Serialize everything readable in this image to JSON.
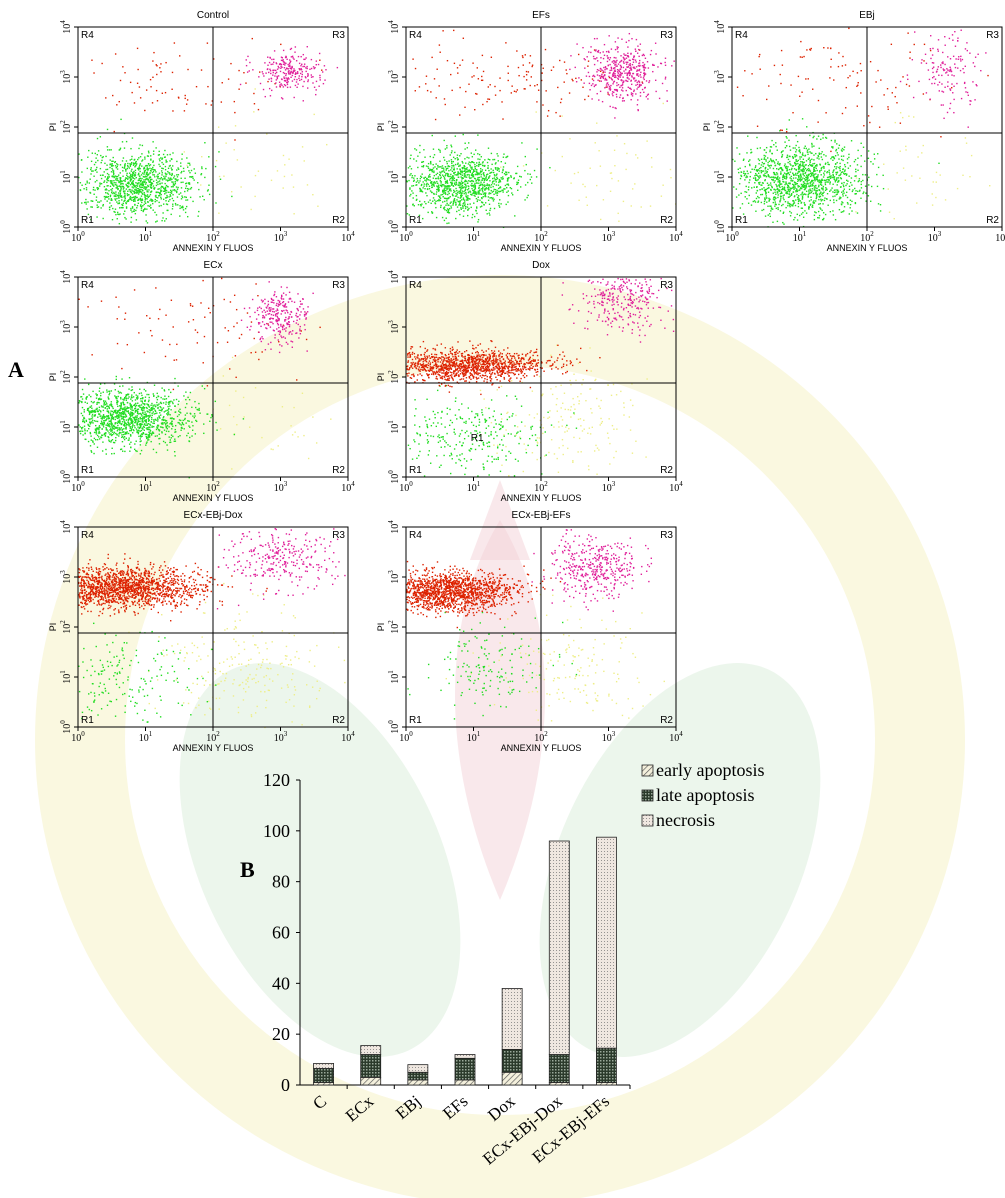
{
  "figure": {
    "label_a": "A",
    "label_b": "B"
  },
  "panels": [
    {
      "title": "Control",
      "xlabel": "ANNEXIN Y FLUOS",
      "ylabel": "PI"
    },
    {
      "title": "EFs",
      "xlabel": "ANNEXIN Y FLUOS",
      "ylabel": "PI"
    },
    {
      "title": "EBj",
      "xlabel": "ANNEXIN Y FLUOS",
      "ylabel": "PI"
    },
    {
      "title": "ECx",
      "xlabel": "ANNEXIN Y FLUOS",
      "ylabel": "PI"
    },
    {
      "title": "Dox",
      "xlabel": "ANNEXIN Y FLUOS",
      "ylabel": "PI",
      "extra_label": "R1"
    },
    {
      "title": "ECx-EBj-Dox",
      "xlabel": "ANNEXIN Y FLUOS",
      "ylabel": "PI"
    },
    {
      "title": "ECx-EBj-EFs",
      "xlabel": "ANNEXIN Y FLUOS",
      "ylabel": "PI"
    }
  ],
  "region_labels": [
    "R1",
    "R2",
    "R3",
    "R4"
  ],
  "colors": {
    "live": "#22dd22",
    "early": "#eeee88",
    "late": "#e0209a",
    "necrosis": "#dd2200",
    "grid": "#000000"
  },
  "chart_data": [
    {
      "type": "scatter",
      "panels": [
        "Control",
        "EFs",
        "EBj",
        "ECx",
        "Dox",
        "ECx-EBj-Dox",
        "ECx-EBj-EFs"
      ],
      "xlabel": "ANNEXIN Y FLUOS",
      "ylabel": "PI",
      "x_scale": "log",
      "y_scale": "log",
      "xlim": [
        1,
        10000
      ],
      "ylim": [
        1,
        10000
      ],
      "x_ticks": [
        "10^0",
        "10^1",
        "10^2",
        "10^3",
        "10^4"
      ],
      "y_ticks": [
        "10^0",
        "10^1",
        "10^2",
        "10^3",
        "10^4"
      ],
      "quadrant_lines": {
        "x": 100,
        "y": 75
      },
      "regions": [
        "R1",
        "R2",
        "R3",
        "R4"
      ]
    },
    {
      "type": "bar",
      "stacked": true,
      "categories": [
        "C",
        "ECx",
        "EBj",
        "EFs",
        "Dox",
        "ECx-EBj-Dox",
        "ECx-EBj-EFs"
      ],
      "series": [
        {
          "name": "early apoptosis",
          "values": [
            1,
            3,
            2,
            2,
            5,
            1,
            1
          ]
        },
        {
          "name": "late apoptosis",
          "values": [
            5.5,
            9,
            3,
            8.5,
            9,
            11,
            13.5
          ]
        },
        {
          "name": "necrosis",
          "values": [
            2,
            3.5,
            3,
            1.5,
            24,
            84,
            83
          ]
        }
      ],
      "ylim": [
        0,
        120
      ],
      "y_ticks": [
        0,
        20,
        40,
        60,
        80,
        100,
        120
      ],
      "legend": "top-right",
      "grid": false
    }
  ]
}
